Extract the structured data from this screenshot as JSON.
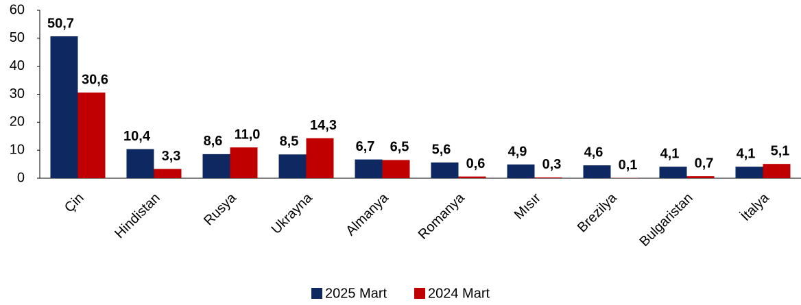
{
  "chart_data": {
    "type": "bar",
    "categories": [
      "Çin",
      "Hindistan",
      "Rusya",
      "Ukrayna",
      "Almanya",
      "Romanya",
      "Mısır",
      "Brezilya",
      "Bulgaristan",
      "İtalya"
    ],
    "series": [
      {
        "name": "2025 Mart",
        "color": "#0e2862",
        "values": [
          50.7,
          10.4,
          8.6,
          8.5,
          6.7,
          5.6,
          4.9,
          4.6,
          4.1,
          4.1
        ],
        "value_labels": [
          "50,7",
          "10,4",
          "8,6",
          "8,5",
          "6,7",
          "5,6",
          "4,9",
          "4,6",
          "4,1",
          "4,1"
        ]
      },
      {
        "name": "2024 Mart",
        "color": "#c00000",
        "values": [
          30.6,
          3.3,
          11.0,
          14.3,
          6.5,
          0.6,
          0.3,
          0.1,
          0.7,
          5.1
        ],
        "value_labels": [
          "30,6",
          "3,3",
          "11,0",
          "14,3",
          "6,5",
          "0,6",
          "0,3",
          "0,1",
          "0,7",
          "5,1"
        ]
      }
    ],
    "ylim": [
      0,
      60
    ],
    "yticks": [
      0,
      10,
      20,
      30,
      40,
      50,
      60
    ],
    "legend": "bottom"
  }
}
